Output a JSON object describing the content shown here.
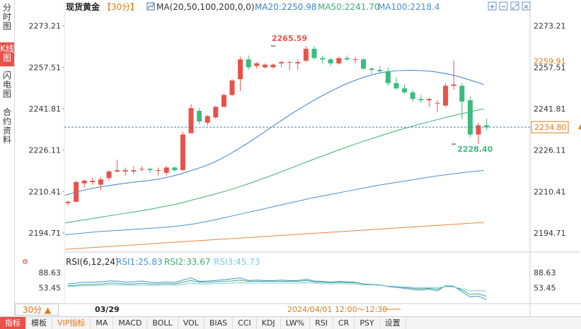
{
  "sidebar": {
    "tabs": [
      {
        "label": "分时图",
        "active": false
      },
      {
        "label": "K线图",
        "active": true
      },
      {
        "label": "闪电图",
        "active": false
      },
      {
        "label": "合约资料",
        "active": false
      }
    ]
  },
  "header": {
    "instrument": "现货黄金",
    "period_tag": "【30分】",
    "ma_params": "MA(20,50,100,200,0,0)",
    "ma20_label": "MA20:2250.98",
    "ma50_label": "MA50:2241.70",
    "ma100_label": "MA100:2218.4"
  },
  "toolbar_icons": [
    "zoom-in-icon",
    "zoom-out-icon",
    "restore-icon",
    "close-icon"
  ],
  "rsi_header": {
    "label": "RSI(6,12,24)",
    "rsi1": "RSI1:25.83",
    "rsi2": "RSI2:33.67",
    "rsi3": "RSI3:45.73"
  },
  "footer": {
    "period": "30分 ▲",
    "date_left": "03/29",
    "cursor_time": "2024/04/01 12:00～12:30"
  },
  "bottom_tabs": [
    {
      "label": "指标",
      "active": true,
      "vip": false
    },
    {
      "label": "模板",
      "active": false,
      "vip": false
    },
    {
      "label": "VIP指标",
      "active": false,
      "vip": true
    },
    {
      "label": "MA",
      "active": false,
      "vip": false
    },
    {
      "label": "MACD",
      "active": false,
      "vip": false
    },
    {
      "label": "BOLL",
      "active": false,
      "vip": false
    },
    {
      "label": "VOL",
      "active": false,
      "vip": false
    },
    {
      "label": "BIAS",
      "active": false,
      "vip": false
    },
    {
      "label": "CCI",
      "active": false,
      "vip": false
    },
    {
      "label": "KDJ",
      "active": false,
      "vip": false
    },
    {
      "label": "LW%",
      "active": false,
      "vip": false
    },
    {
      "label": "RSI",
      "active": false,
      "vip": false
    },
    {
      "label": "CR",
      "active": false,
      "vip": false
    },
    {
      "label": "PSY",
      "active": false,
      "vip": false
    },
    {
      "label": "设置",
      "active": false,
      "vip": false
    }
  ],
  "colors": {
    "up": "#e8524a",
    "down": "#3dbb7e",
    "ma20": "#3a80d0",
    "ma50": "#3dae6e",
    "ma100": "#4a8fcf",
    "ma200": "#e8833a",
    "rsi1": "#4a90d9",
    "rsi2": "#3dae6e",
    "rsi3": "#7fc8e8",
    "accent": "#e07a18"
  },
  "chart_data": {
    "type": "candlestick",
    "ylim": [
      2188,
      2279
    ],
    "y_ticks": [
      "2273.21",
      "2257.51",
      "2241.81",
      "2226.11",
      "2210.41",
      "2194.71"
    ],
    "y_tick_values": [
      2273.21,
      2257.51,
      2241.81,
      2226.11,
      2210.41,
      2194.71
    ],
    "current_price": "2234.80",
    "current_price_value": 2234.8,
    "marker_price": "2259.91",
    "marker_price_value": 2259.91,
    "high_annotation": {
      "text": "2265.59",
      "index": 25,
      "value": 2265.59
    },
    "low_annotation": {
      "text": "2228.40",
      "index": 47,
      "value": 2228.4
    },
    "candles": [
      [
        2206.0,
        2207.0,
        2205.0,
        2206.5
      ],
      [
        2206.5,
        2214.5,
        2206.5,
        2214.0
      ],
      [
        2213.5,
        2215.0,
        2212.0,
        2214.5
      ],
      [
        2214.0,
        2215.5,
        2213.0,
        2214.5
      ],
      [
        2213.0,
        2216.0,
        2211.0,
        2215.0
      ],
      [
        2215.5,
        2218.5,
        2214.5,
        2218.0
      ],
      [
        2218.0,
        2222.5,
        2217.5,
        2218.5
      ],
      [
        2218.0,
        2219.5,
        2216.5,
        2218.5
      ],
      [
        2218.0,
        2220.0,
        2217.0,
        2218.5
      ],
      [
        2219.0,
        2220.0,
        2218.0,
        2219.0
      ],
      [
        2219.0,
        2219.5,
        2217.5,
        2218.5
      ],
      [
        2218.5,
        2219.5,
        2216.5,
        2218.5
      ],
      [
        2217.5,
        2220.0,
        2216.5,
        2219.5
      ],
      [
        2219.5,
        2220.0,
        2218.0,
        2218.5
      ],
      [
        2218.5,
        2233.0,
        2218.5,
        2232.0
      ],
      [
        2232.5,
        2243.5,
        2233.0,
        2242.0
      ],
      [
        2241.0,
        2242.0,
        2236.0,
        2237.0
      ],
      [
        2236.5,
        2239.5,
        2235.5,
        2239.0
      ],
      [
        2238.5,
        2243.0,
        2238.0,
        2242.5
      ],
      [
        2242.5,
        2247.5,
        2242.5,
        2247.0
      ],
      [
        2247.0,
        2253.0,
        2246.5,
        2252.5
      ],
      [
        2253.0,
        2261.5,
        2248.5,
        2260.5
      ],
      [
        2260.5,
        2262.0,
        2256.5,
        2257.5
      ],
      [
        2258.0,
        2259.5,
        2257.0,
        2259.0
      ],
      [
        2257.5,
        2259.0,
        2257.0,
        2258.5
      ],
      [
        2257.5,
        2259.0,
        2257.0,
        2258.5
      ],
      [
        2259.0,
        2260.0,
        2257.5,
        2259.5
      ],
      [
        2259.5,
        2260.0,
        2256.5,
        2259.5
      ],
      [
        2259.0,
        2260.5,
        2256.5,
        2259.5
      ],
      [
        2260.0,
        2265.5,
        2259.5,
        2264.5
      ],
      [
        2264.5,
        2265.6,
        2260.5,
        2261.0
      ],
      [
        2261.0,
        2262.0,
        2259.0,
        2260.5
      ],
      [
        2260.5,
        2261.0,
        2258.0,
        2259.0
      ],
      [
        2259.0,
        2261.5,
        2258.5,
        2261.0
      ],
      [
        2261.0,
        2262.0,
        2260.0,
        2260.5
      ],
      [
        2260.5,
        2261.5,
        2259.0,
        2260.5
      ],
      [
        2260.5,
        2261.0,
        2256.5,
        2257.0
      ],
      [
        2257.0,
        2257.5,
        2255.0,
        2256.5
      ],
      [
        2256.5,
        2258.0,
        2255.5,
        2256.0
      ],
      [
        2256.0,
        2257.5,
        2250.5,
        2251.5
      ],
      [
        2251.5,
        2253.5,
        2249.0,
        2249.5
      ],
      [
        2249.5,
        2251.0,
        2247.5,
        2248.0
      ],
      [
        2248.0,
        2249.0,
        2244.5,
        2245.5
      ],
      [
        2245.5,
        2247.0,
        2244.0,
        2245.0
      ],
      [
        2245.0,
        2246.0,
        2242.5,
        2245.5
      ],
      [
        2244.0,
        2245.0,
        2240.5,
        2244.0
      ],
      [
        2243.0,
        2251.5,
        2242.5,
        2250.5
      ],
      [
        2250.5,
        2260.0,
        2249.0,
        2251.0
      ],
      [
        2250.5,
        2251.5,
        2238.0,
        2244.5
      ],
      [
        2245.0,
        2246.5,
        2231.0,
        2232.0
      ],
      [
        2232.0,
        2236.5,
        2228.4,
        2235.5
      ],
      [
        2235.5,
        2238.0,
        2233.5,
        2234.8
      ]
    ],
    "ma20": [
      2209.0,
      2209.9,
      2210.7,
      2211.4,
      2212.0,
      2212.5,
      2213.0,
      2213.4,
      2213.8,
      2214.2,
      2214.5,
      2214.9,
      2215.5,
      2216.2,
      2217.0,
      2218.0,
      2219.0,
      2220.0,
      2221.3,
      2222.8,
      2224.5,
      2226.4,
      2228.3,
      2230.3,
      2232.4,
      2234.5,
      2236.6,
      2238.7,
      2240.7,
      2242.6,
      2244.5,
      2246.2,
      2247.8,
      2249.4,
      2250.9,
      2252.2,
      2253.3,
      2254.3,
      2255.1,
      2255.7,
      2256.1,
      2256.3,
      2256.4,
      2256.3,
      2256.1,
      2255.8,
      2255.3,
      2254.7,
      2253.9,
      2253.0,
      2252.0,
      2250.98
    ],
    "ma50": [
      2198.5,
      2199.0,
      2199.5,
      2200.0,
      2200.5,
      2201.0,
      2201.5,
      2202.0,
      2202.5,
      2203.0,
      2203.5,
      2204.1,
      2204.7,
      2205.3,
      2206.0,
      2206.8,
      2207.6,
      2208.4,
      2209.2,
      2210.1,
      2211.0,
      2212.0,
      2213.0,
      2214.1,
      2215.2,
      2216.3,
      2217.5,
      2218.7,
      2219.9,
      2221.1,
      2222.3,
      2223.5,
      2224.6,
      2225.8,
      2226.9,
      2228.0,
      2229.1,
      2230.1,
      2231.1,
      2232.1,
      2233.1,
      2234.0,
      2234.9,
      2235.8,
      2236.6,
      2237.4,
      2238.2,
      2239.0,
      2239.7,
      2240.4,
      2241.1,
      2241.7
    ],
    "ma100": [
      2194.0,
      2194.3,
      2194.6,
      2194.9,
      2195.2,
      2195.4,
      2195.6,
      2195.8,
      2196.0,
      2196.2,
      2196.4,
      2196.6,
      2196.8,
      2197.1,
      2197.4,
      2197.8,
      2198.3,
      2198.9,
      2199.5,
      2200.2,
      2200.9,
      2201.6,
      2202.3,
      2203.0,
      2203.7,
      2204.4,
      2205.1,
      2205.8,
      2206.5,
      2207.2,
      2207.9,
      2208.5,
      2209.1,
      2209.7,
      2210.3,
      2210.9,
      2211.5,
      2212.1,
      2212.7,
      2213.2,
      2213.7,
      2214.2,
      2214.7,
      2215.2,
      2215.7,
      2216.2,
      2216.6,
      2217.0,
      2217.4,
      2217.8,
      2218.1,
      2218.4
    ],
    "ma200": [
      2188.5,
      2188.7,
      2188.9,
      2189.1,
      2189.3,
      2189.5,
      2189.7,
      2189.9,
      2190.1,
      2190.3,
      2190.5,
      2190.7,
      2190.9,
      2191.1,
      2191.3,
      2191.5,
      2191.7,
      2191.9,
      2192.1,
      2192.3,
      2192.5,
      2192.7,
      2192.9,
      2193.1,
      2193.3,
      2193.5,
      2193.7,
      2193.9,
      2194.1,
      2194.3,
      2194.5,
      2194.7,
      2194.9,
      2195.1,
      2195.3,
      2195.5,
      2195.7,
      2195.9,
      2196.1,
      2196.3,
      2196.5,
      2196.7,
      2196.9,
      2197.1,
      2197.3,
      2197.5,
      2197.7,
      2197.9,
      2198.1,
      2198.3,
      2198.5,
      2198.7
    ],
    "rsi_ylim": [
      20,
      95
    ],
    "rsi_ticks": [
      "88.63",
      "53.45"
    ],
    "rsi_tick_values": [
      88.63,
      53.45
    ],
    "rsi1": [
      62,
      64,
      66,
      66,
      67,
      69,
      69,
      66,
      67,
      69,
      66,
      65,
      67,
      65,
      71,
      76,
      68,
      69,
      70,
      72,
      74,
      76,
      70,
      71,
      70,
      70,
      71,
      70,
      70,
      73,
      69,
      68,
      66,
      68,
      67,
      66,
      62,
      61,
      60,
      56,
      54,
      52,
      49,
      48,
      50,
      46,
      58,
      57,
      44,
      32,
      34,
      25.83
    ],
    "rsi2": [
      58,
      59,
      61,
      61,
      62,
      64,
      64,
      62,
      62,
      64,
      62,
      62,
      63,
      62,
      66,
      70,
      66,
      66,
      67,
      68,
      69,
      71,
      68,
      68,
      68,
      68,
      68,
      68,
      68,
      70,
      67,
      66,
      65,
      66,
      65,
      65,
      62,
      61,
      60,
      57,
      56,
      54,
      52,
      51,
      52,
      50,
      57,
      56,
      48,
      38,
      39,
      33.67
    ],
    "rsi3": [
      56,
      57,
      58,
      58,
      59,
      60,
      60,
      59,
      59,
      60,
      59,
      59,
      60,
      59,
      61,
      64,
      62,
      62,
      63,
      63,
      64,
      65,
      64,
      64,
      64,
      64,
      64,
      64,
      64,
      65,
      64,
      63,
      62,
      63,
      62,
      62,
      60,
      60,
      59,
      57,
      56,
      55,
      54,
      53,
      54,
      53,
      56,
      55,
      51,
      46,
      47,
      45.73
    ]
  }
}
